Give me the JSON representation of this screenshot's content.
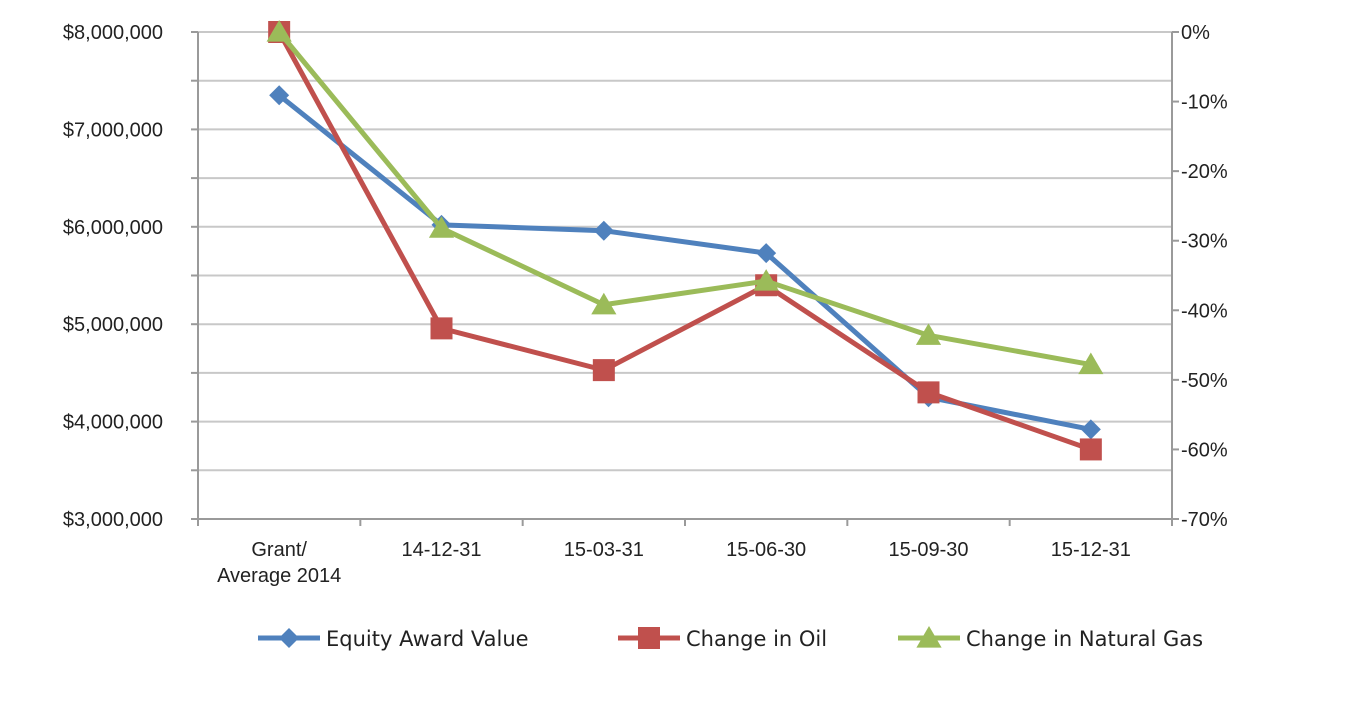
{
  "chart_data": {
    "type": "line",
    "title": "",
    "xlabel": "",
    "ylabel": "",
    "categories": [
      "Grant/\nAverage 2014",
      "14-12-31",
      "15-03-31",
      "15-06-30",
      "15-09-30",
      "15-12-31"
    ],
    "y_left": {
      "range": [
        3000000,
        8000000
      ],
      "ticks": [
        3000000,
        4000000,
        5000000,
        6000000,
        7000000,
        8000000
      ],
      "tick_labels": [
        "$3,000,000",
        "$4,000,000",
        "$5,000,000",
        "$6,000,000",
        "$7,000,000",
        "$8,000,000"
      ]
    },
    "y_right": {
      "range": [
        -70,
        0
      ],
      "ticks": [
        -70,
        -60,
        -50,
        -40,
        -30,
        -20,
        -10,
        0
      ],
      "tick_labels": [
        "-70%",
        "-60%",
        "-50%",
        "-40%",
        "-30%",
        "-20%",
        "-10%",
        "0%"
      ]
    },
    "grid": true,
    "legend_position": "bottom",
    "series": [
      {
        "name": "Equity Award Value",
        "axis": "left",
        "color": "#4f81bd",
        "marker": "diamond",
        "values": [
          7350000,
          6020000,
          5960000,
          5730000,
          4250000,
          3920000
        ]
      },
      {
        "name": "Change in Oil",
        "axis": "right",
        "color": "#c0504d",
        "marker": "square",
        "values": [
          0,
          -42.6,
          -48.6,
          -36.4,
          -51.8,
          -60
        ]
      },
      {
        "name": "Change in Natural Gas",
        "axis": "right",
        "color": "#9bbb59",
        "marker": "triangle",
        "values": [
          0,
          -28.2,
          -39.2,
          -35.8,
          -43.6,
          -47.8
        ]
      }
    ]
  }
}
